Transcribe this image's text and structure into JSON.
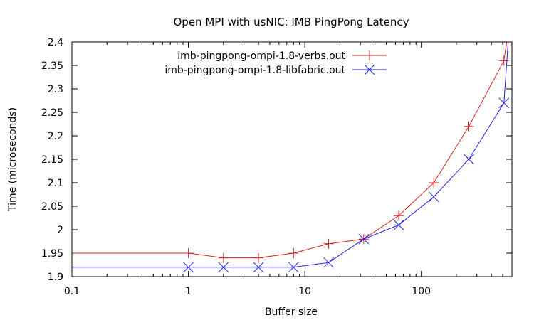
{
  "chart_data": {
    "type": "line",
    "title": "Open MPI with usNIC: IMB PingPong Latency",
    "xlabel": "Buffer size",
    "ylabel": "Time (microseconds)",
    "xscale": "log",
    "xlim": [
      0.1,
      600
    ],
    "ylim": [
      1.9,
      2.4
    ],
    "x_tick_labels": [
      "0.1",
      "1",
      "10",
      "100"
    ],
    "y_tick_labels": [
      "1.9",
      "1.95",
      "2",
      "2.05",
      "2.1",
      "2.15",
      "2.2",
      "2.25",
      "2.3",
      "2.35",
      "2.4"
    ],
    "grid": false,
    "legend_position": "top-center-inside",
    "x": [
      1,
      2,
      4,
      8,
      16,
      32,
      64,
      128,
      256,
      512
    ],
    "series": [
      {
        "name": "imb-pingpong-ompi-1.8-verbs.out",
        "color": "#e02020",
        "marker": "plus",
        "left_value": 1.95,
        "values": [
          1.95,
          1.94,
          1.94,
          1.95,
          1.97,
          1.98,
          2.03,
          2.1,
          2.22,
          2.36
        ],
        "continues_above_ylim": true
      },
      {
        "name": "imb-pingpong-ompi-1.8-libfabric.out",
        "color": "#2020e8",
        "marker": "cross",
        "left_value": 1.92,
        "values": [
          1.92,
          1.92,
          1.92,
          1.92,
          1.93,
          1.98,
          2.01,
          2.07,
          2.15,
          2.27
        ],
        "continues_above_ylim": true
      }
    ]
  }
}
